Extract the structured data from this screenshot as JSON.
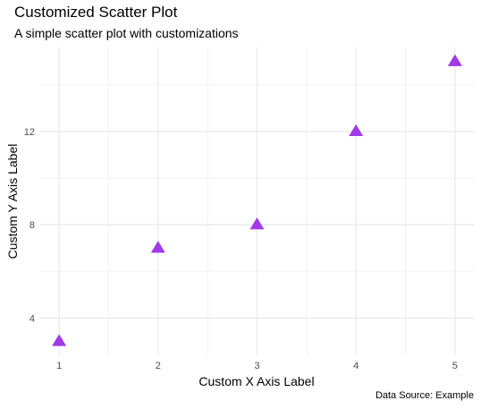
{
  "chart_data": {
    "type": "scatter",
    "title": "Customized Scatter Plot",
    "subtitle": "A simple scatter plot with customizations",
    "caption": "Data Source: Example",
    "xlabel": "Custom X Axis Label",
    "ylabel": "Custom Y Axis Label",
    "x": [
      1,
      2,
      3,
      4,
      5
    ],
    "y": [
      3,
      7,
      8,
      12,
      15
    ],
    "xlim": [
      0.8,
      5.2
    ],
    "ylim": [
      2.4,
      15.6
    ],
    "xticks": [
      1,
      2,
      3,
      4,
      5
    ],
    "yticks": [
      4,
      8,
      12
    ],
    "marker": "triangle",
    "marker_color": "#a03ae8",
    "grid": true,
    "legend": "none"
  }
}
